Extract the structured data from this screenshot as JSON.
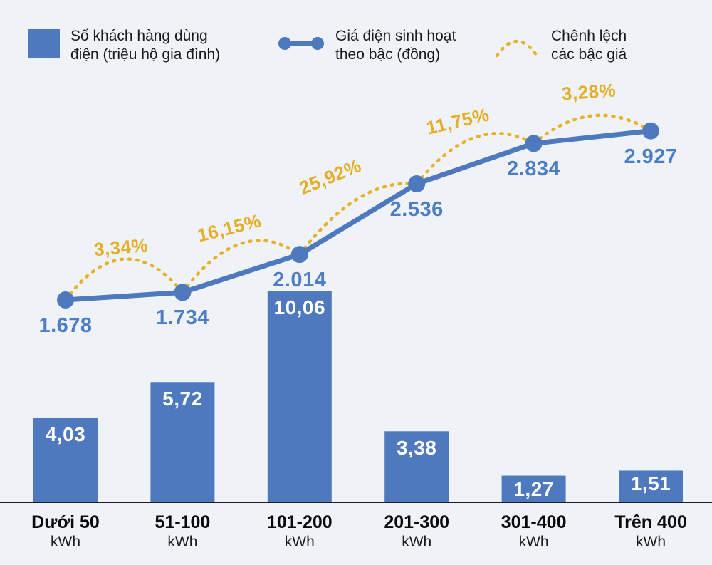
{
  "legend": {
    "items": [
      {
        "id": "bars",
        "line1": "Số khách hàng dùng",
        "line2": "điện (triệu hộ gia đình)"
      },
      {
        "id": "line",
        "line1": "Giá điện sinh hoạt",
        "line2": "theo bậc (đồng)"
      },
      {
        "id": "diff",
        "line1": "Chênh lệch",
        "line2": "các bậc giá"
      }
    ]
  },
  "chart_data": {
    "type": "bar",
    "subtype": "combo-bar-line-with-arc-annotations",
    "categories": [
      "Dưới 50",
      "51-100",
      "101-200",
      "201-300",
      "301-400",
      "Trên 400"
    ],
    "category_unit": "kWh",
    "series": [
      {
        "name": "Số khách hàng dùng điện (triệu hộ gia đình)",
        "type": "bar",
        "values": [
          4.03,
          5.72,
          10.06,
          3.38,
          1.27,
          1.51
        ],
        "labels": [
          "4,03",
          "5,72",
          "10,06",
          "3,38",
          "1,27",
          "1,51"
        ]
      },
      {
        "name": "Giá điện sinh hoạt theo bậc (đồng)",
        "type": "line",
        "values": [
          1678,
          1734,
          2014,
          2536,
          2834,
          2927
        ],
        "labels": [
          "1.678",
          "1.734",
          "2.014",
          "2.536",
          "2.834",
          "2.927"
        ]
      },
      {
        "name": "Chênh lệch các bậc giá",
        "type": "arc-annotation",
        "values": [
          3.34,
          16.15,
          25.92,
          11.75,
          3.28
        ],
        "labels": [
          "3,34%",
          "16,15%",
          "25,92%",
          "11,75%",
          "3,28%"
        ]
      }
    ],
    "legend_position": "top",
    "grid": false,
    "ylim_bar": [
      0,
      10.5
    ],
    "ylim_line": [
      1600,
      3000
    ]
  },
  "colors": {
    "background": "#eff3f7",
    "bar": "#4e79bf",
    "line": "#4e79bf",
    "accent": "#e8b12c",
    "axis": "#1c1c1c",
    "bar_label": "#ffffff",
    "line_label": "#4d7dc5",
    "percent_label": "#e6ae28"
  }
}
